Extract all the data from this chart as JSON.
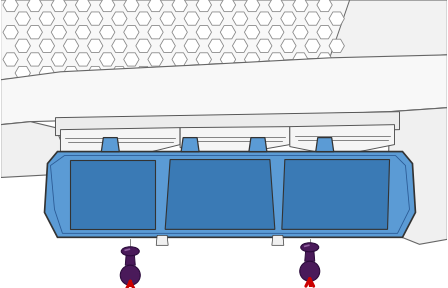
{
  "bg_color": "#ffffff",
  "bumper_color": "#5b9bd5",
  "bumper_dark": "#3a7ab5",
  "bumper_outline": "#333333",
  "fastener_color": "#4a1a5a",
  "fastener_outline": "#2a0a3a",
  "arrow_color": "#cc0000",
  "outline_color": "#555555",
  "grille_bg": "#f8f8f8",
  "grille_hex_fill": "#ffffff",
  "grille_hex_edge": "#888888",
  "body_fill": "#ffffff",
  "body_outline": "#666666"
}
